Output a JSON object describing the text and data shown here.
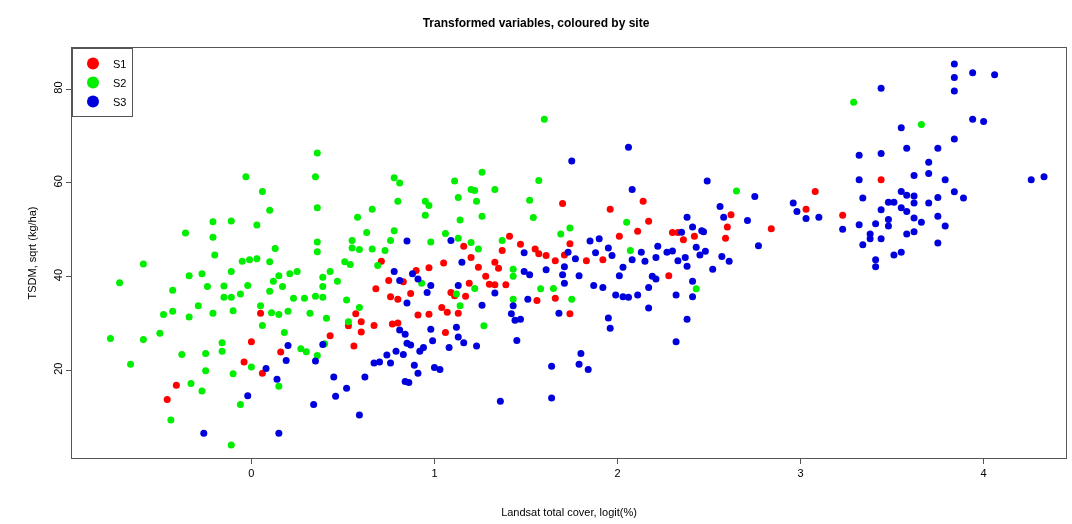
{
  "chart_data": {
    "type": "scatter",
    "title": "Transformed variables, coloured by site",
    "xlabel": "Landsat total cover, logit(%)",
    "ylabel": "TSDM, sqrt (kg/ha)",
    "xlim": [
      -0.98,
      4.45
    ],
    "ylim": [
      1.3,
      88.8
    ],
    "xticks": [
      0,
      1,
      2,
      3,
      4
    ],
    "yticks": [
      20,
      40,
      60,
      80
    ],
    "legend": "top left",
    "marker": "circle",
    "series": [
      {
        "name": "S1",
        "color": "#ff0000",
        "x": [
          0.05,
          0.0,
          0.16,
          -0.04,
          0.06,
          -0.41,
          -0.46,
          0.43,
          0.53,
          0.56,
          0.57,
          0.6,
          0.6,
          0.67,
          0.68,
          0.71,
          0.75,
          0.76,
          0.8,
          0.77,
          0.8,
          0.83,
          1.7,
          1.41,
          1.16,
          1.37,
          1.47,
          1.55,
          1.57,
          1.61,
          1.71,
          1.74,
          1.05,
          0.97,
          0.9,
          1.2,
          1.24,
          1.33,
          1.35,
          1.28,
          1.3,
          1.33,
          1.39,
          1.19,
          1.09,
          0.87,
          1.17,
          1.11,
          1.04,
          1.07,
          1.13,
          0.91,
          0.97,
          1.06,
          1.56,
          1.66,
          1.74,
          1.96,
          2.01,
          2.11,
          2.14,
          2.17,
          2.3,
          2.33,
          2.36,
          2.42,
          2.28,
          1.66,
          1.83,
          1.92,
          2.59,
          2.62,
          2.6,
          3.08,
          3.03,
          3.23,
          3.44,
          2.84
        ],
        "values": [
          32.2,
          26.1,
          23.9,
          21.8,
          19.4,
          16.8,
          13.8,
          27.4,
          29.5,
          25.2,
          32.1,
          30.4,
          28.2,
          29.6,
          37.4,
          43.3,
          39.2,
          35.7,
          35.2,
          29.9,
          30.1,
          38.9,
          55.6,
          48.6,
          46.5,
          45.6,
          46.9,
          45.9,
          44.9,
          44.5,
          44.6,
          47.0,
          42.9,
          41.9,
          41.3,
          44.1,
          42.0,
          43.1,
          41.8,
          40.1,
          38.4,
          38.3,
          38.3,
          38.6,
          36.6,
          36.4,
          35.8,
          35.9,
          33.4,
          32.4,
          32.2,
          31.8,
          32.0,
          28.1,
          34.9,
          35.4,
          32.1,
          54.4,
          48.6,
          49.7,
          56.1,
          51.8,
          49.4,
          49.4,
          47.9,
          48.6,
          40.2,
          43.4,
          43.4,
          43.6,
          48.2,
          53.2,
          50.6,
          58.2,
          54.4,
          53.1,
          60.7,
          50.2
        ]
      },
      {
        "name": "S2",
        "color": "#00ee00",
        "x": [
          0.36,
          -0.03,
          0.35,
          0.06,
          0.36,
          0.1,
          0.78,
          0.81,
          0.8,
          0.66,
          0.58,
          -0.11,
          -0.21,
          0.03,
          -0.36,
          -0.21,
          0.63,
          0.78,
          0.55,
          0.76,
          0.36,
          0.13,
          0.36,
          -0.2,
          0.55,
          0.59,
          0.66,
          0.73,
          -0.59,
          -0.05,
          -0.01,
          0.03,
          0.1,
          0.51,
          0.54,
          0.69,
          -0.34,
          -0.27,
          -0.11,
          0.15,
          0.21,
          0.25,
          0.39,
          0.43,
          -0.72,
          -0.43,
          -0.24,
          -0.15,
          -0.02,
          0.12,
          0.17,
          0.47,
          0.39,
          -0.15,
          -0.11,
          -0.06,
          0.05,
          0.1,
          0.23,
          0.29,
          0.35,
          0.39,
          -0.29,
          -0.48,
          -0.43,
          -0.34,
          -0.21,
          -0.1,
          0.11,
          0.15,
          0.2,
          0.32,
          0.41,
          0.52,
          0.59,
          0.53,
          0.06,
          0.18,
          -0.5,
          -0.77,
          -0.59,
          -0.16,
          -0.16,
          0.27,
          0.3,
          0.36,
          0.4,
          -0.38,
          -0.25,
          -0.66,
          0.0,
          -0.25,
          -0.1,
          -0.33,
          -0.27,
          -0.06,
          0.15,
          -0.44,
          -0.11,
          1.6,
          1.57,
          1.11,
          1.26,
          1.2,
          1.22,
          1.33,
          1.13,
          1.23,
          0.95,
          0.97,
          0.95,
          1.14,
          1.26,
          1.52,
          1.54,
          1.69,
          1.74,
          1.06,
          1.13,
          0.98,
          1.2,
          1.24,
          1.37,
          2.05,
          2.07,
          2.65,
          1.43,
          1.43,
          0.93,
          1.22,
          1.12,
          1.14,
          1.65,
          1.58,
          1.43,
          1.75,
          1.27,
          2.43,
          3.29,
          3.66
        ],
        "values": [
          66.4,
          61.3,
          61.3,
          58.2,
          54.7,
          54.2,
          61.1,
          60.0,
          56.1,
          54.4,
          52.7,
          51.9,
          51.7,
          51.0,
          49.3,
          48.4,
          49.4,
          49.8,
          47.7,
          47.7,
          47.4,
          46.0,
          45.3,
          44.6,
          46.1,
          45.8,
          45.9,
          45.6,
          42.7,
          43.3,
          43.6,
          43.8,
          43.2,
          43.2,
          42.6,
          42.4,
          40.2,
          40.6,
          41.1,
          40.2,
          40.6,
          41.1,
          39.9,
          41.1,
          38.7,
          37.1,
          37.9,
          38.0,
          38.1,
          39.0,
          37.9,
          39.0,
          37.9,
          35.6,
          35.6,
          36.3,
          33.8,
          36.9,
          35.4,
          35.4,
          35.8,
          35.6,
          33.8,
          31.9,
          32.6,
          31.4,
          32.2,
          32.7,
          32.3,
          31.9,
          32.6,
          32.2,
          31.1,
          35.0,
          33.4,
          30.4,
          29.6,
          28.1,
          27.9,
          26.8,
          26.6,
          25.9,
          24.1,
          24.6,
          24.0,
          23.2,
          25.7,
          23.4,
          23.6,
          21.3,
          20.7,
          19.9,
          19.3,
          17.2,
          15.6,
          12.7,
          16.6,
          9.4,
          4.1,
          73.6,
          60.5,
          60.4,
          62.3,
          58.6,
          58.4,
          58.6,
          56.9,
          56.1,
          56.1,
          55.2,
          53.1,
          52.1,
          52.9,
          56.3,
          52.6,
          49.1,
          50.4,
          49.2,
          48.2,
          47.4,
          47.3,
          45.9,
          47.7,
          51.6,
          45.6,
          58.3,
          41.6,
          40.1,
          38.6,
          37.5,
          36.3,
          33.8,
          37.5,
          37.4,
          35.2,
          35.2,
          29.5,
          37.4,
          77.2,
          72.5
        ]
      },
      {
        "name": "S3",
        "color": "#0000dd",
        "x": [
          0.2,
          0.19,
          0.35,
          0.39,
          0.08,
          0.14,
          -0.02,
          0.34,
          0.45,
          0.46,
          0.52,
          0.62,
          0.59,
          -0.26,
          0.15,
          0.67,
          0.7,
          0.76,
          0.74,
          0.79,
          0.83,
          0.84,
          0.78,
          0.81,
          0.84,
          0.85,
          0.85,
          0.81,
          0.85,
          2.06,
          1.75,
          2.08,
          2.49,
          2.56,
          2.58,
          2.38,
          2.41,
          2.46,
          2.47,
          2.35,
          1.85,
          1.9,
          1.95,
          2.13,
          2.22,
          2.27,
          2.3,
          2.37,
          2.43,
          2.48,
          2.45,
          1.97,
          1.88,
          2.08,
          2.15,
          2.21,
          2.38,
          2.33,
          2.19,
          2.21,
          2.17,
          2.01,
          2.03,
          2.41,
          2.52,
          2.57,
          2.61,
          1.87,
          1.92,
          1.99,
          2.03,
          2.06,
          2.11,
          2.32,
          2.41,
          2.17,
          1.95,
          1.96,
          2.38,
          2.32,
          1.8,
          1.79,
          1.84,
          1.64,
          1.64,
          1.36,
          1.09,
          1.15,
          1.49,
          1.49,
          1.52,
          1.61,
          1.71,
          1.73,
          1.77,
          1.79,
          1.7,
          1.71,
          1.51,
          1.43,
          1.42,
          1.44,
          1.47,
          1.45,
          1.68,
          1.33,
          1.26,
          1.13,
          0.96,
          0.98,
          0.91,
          0.88,
          0.98,
          0.99,
          1.12,
          1.13,
          1.16,
          1.23,
          1.08,
          0.89,
          0.91,
          1.0,
          1.03,
          0.86,
          0.94,
          0.92,
          0.87,
          3.84,
          3.84,
          3.84,
          3.94,
          4.06,
          3.44,
          3.94,
          4.0,
          3.55,
          3.84,
          3.58,
          3.75,
          3.32,
          3.44,
          3.7,
          3.62,
          3.7,
          3.79,
          3.32,
          4.26,
          4.33,
          2.75,
          3.34,
          3.55,
          3.58,
          3.62,
          3.48,
          3.51,
          3.55,
          3.62,
          3.7,
          3.75,
          3.84,
          3.89,
          2.96,
          2.98,
          3.03,
          3.1,
          2.71,
          3.44,
          3.58,
          3.62,
          3.66,
          3.75,
          3.79,
          3.41,
          3.48,
          3.48,
          3.32,
          3.23,
          3.38,
          3.38,
          3.44,
          3.58,
          3.62,
          3.34,
          3.75,
          2.77,
          3.51,
          3.55,
          3.41,
          3.41
        ],
        "values": [
          25.3,
          22.1,
          22.0,
          25.5,
          20.4,
          18.1,
          14.6,
          12.7,
          18.6,
          14.5,
          16.2,
          18.6,
          10.5,
          6.6,
          6.6,
          21.6,
          21.8,
          21.6,
          23.3,
          24.1,
          23.4,
          17.6,
          41.1,
          28.6,
          27.7,
          25.8,
          47.6,
          39.2,
          34.4,
          67.6,
          64.7,
          58.6,
          60.4,
          55.0,
          52.7,
          52.7,
          50.6,
          49.8,
          49.6,
          49.5,
          47.6,
          48.1,
          46.1,
          45.2,
          46.5,
          45.2,
          45.5,
          44.1,
          46.3,
          45.4,
          44.6,
          44.5,
          45.1,
          43.6,
          43.3,
          44.1,
          42.2,
          43.4,
          40.1,
          39.5,
          37.7,
          40.2,
          42.0,
          39.0,
          41.6,
          44.3,
          43.3,
          38.1,
          37.7,
          36.1,
          35.7,
          35.6,
          36.1,
          36.1,
          35.7,
          33.3,
          31.2,
          29.0,
          30.9,
          26.1,
          23.6,
          21.3,
          20.2,
          20.9,
          14.1,
          13.4,
          47.7,
          43.1,
          45.1,
          41.1,
          40.4,
          41.5,
          42.1,
          45.2,
          43.8,
          40.2,
          40.4,
          38.6,
          35.2,
          33.8,
          32.1,
          30.7,
          30.9,
          26.4,
          32.2,
          36.5,
          33.9,
          38.1,
          36.6,
          38.1,
          39.5,
          40.6,
          28.8,
          26.3,
          29.2,
          27.1,
          25.9,
          25.2,
          24.9,
          21.1,
          19.4,
          20.6,
          20.2,
          17.4,
          24.9,
          24.1,
          25.4,
          85.4,
          82.5,
          79.6,
          83.5,
          83.1,
          80.2,
          73.6,
          73.1,
          71.8,
          69.4,
          67.4,
          67.4,
          65.9,
          66.3,
          64.4,
          61.6,
          62.0,
          60.7,
          60.7,
          60.7,
          61.3,
          57.1,
          56.8,
          58.2,
          57.4,
          57.2,
          55.9,
          55.9,
          54.7,
          55.7,
          55.7,
          56.9,
          58.1,
          56.8,
          55.7,
          53.9,
          52.4,
          52.7,
          52.0,
          54.3,
          53.9,
          52.5,
          51.6,
          52.9,
          50.8,
          51.3,
          52.2,
          50.8,
          51.1,
          50.1,
          49.1,
          48.1,
          48.1,
          49.1,
          49.6,
          46.8,
          47.2,
          46.6,
          44.6,
          45.2,
          43.6,
          42.1
        ]
      }
    ]
  }
}
